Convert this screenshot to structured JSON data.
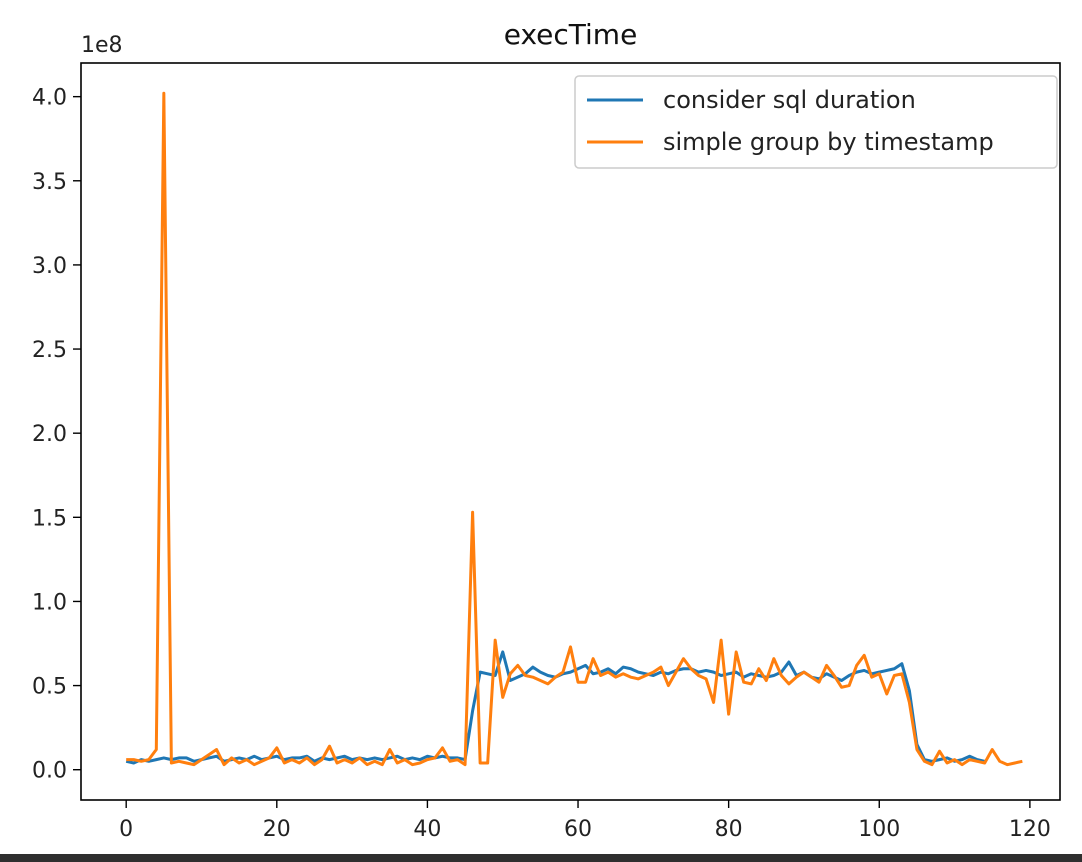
{
  "chart_data": {
    "type": "line",
    "title": "execTime",
    "xlabel": "",
    "ylabel": "",
    "y_multiplier_label": "1e8",
    "xlim": [
      -6,
      124
    ],
    "ylim": [
      -0.18,
      4.2
    ],
    "x_ticks": [
      0,
      20,
      40,
      60,
      80,
      100,
      120
    ],
    "x_tick_labels": [
      "0",
      "20",
      "40",
      "60",
      "80",
      "100",
      "120"
    ],
    "y_ticks": [
      0.0,
      0.5,
      1.0,
      1.5,
      2.0,
      2.5,
      3.0,
      3.5,
      4.0
    ],
    "y_tick_labels": [
      "0.0",
      "0.5",
      "1.0",
      "1.5",
      "2.0",
      "2.5",
      "3.0",
      "3.5",
      "4.0"
    ],
    "legend_position": "top-right",
    "grid": false,
    "series": [
      {
        "name": "consider sql duration",
        "color": "#1f77b4",
        "x": [
          0,
          1,
          2,
          3,
          4,
          5,
          6,
          7,
          8,
          9,
          10,
          11,
          12,
          13,
          14,
          15,
          16,
          17,
          18,
          19,
          20,
          21,
          22,
          23,
          24,
          25,
          26,
          27,
          28,
          29,
          30,
          31,
          32,
          33,
          34,
          35,
          36,
          37,
          38,
          39,
          40,
          41,
          42,
          43,
          44,
          45,
          46,
          47,
          48,
          49,
          50,
          51,
          52,
          53,
          54,
          55,
          56,
          57,
          58,
          59,
          60,
          61,
          62,
          63,
          64,
          65,
          66,
          67,
          68,
          69,
          70,
          71,
          72,
          73,
          74,
          75,
          76,
          77,
          78,
          79,
          80,
          81,
          82,
          83,
          84,
          85,
          86,
          87,
          88,
          89,
          90,
          91,
          92,
          93,
          94,
          95,
          96,
          97,
          98,
          99,
          100,
          101,
          102,
          103,
          104,
          105,
          106,
          107,
          108,
          109,
          110,
          111,
          112,
          113,
          114
        ],
        "y": [
          0.05,
          0.04,
          0.06,
          0.05,
          0.06,
          0.07,
          0.06,
          0.07,
          0.07,
          0.05,
          0.06,
          0.07,
          0.08,
          0.05,
          0.06,
          0.07,
          0.06,
          0.08,
          0.06,
          0.07,
          0.08,
          0.06,
          0.07,
          0.07,
          0.08,
          0.05,
          0.07,
          0.06,
          0.07,
          0.08,
          0.06,
          0.07,
          0.06,
          0.07,
          0.06,
          0.07,
          0.08,
          0.06,
          0.07,
          0.06,
          0.08,
          0.07,
          0.08,
          0.07,
          0.07,
          0.06,
          0.35,
          0.58,
          0.57,
          0.56,
          0.7,
          0.53,
          0.55,
          0.57,
          0.61,
          0.58,
          0.56,
          0.55,
          0.57,
          0.58,
          0.6,
          0.62,
          0.57,
          0.58,
          0.6,
          0.57,
          0.61,
          0.6,
          0.58,
          0.57,
          0.56,
          0.58,
          0.57,
          0.59,
          0.6,
          0.6,
          0.58,
          0.59,
          0.58,
          0.56,
          0.57,
          0.58,
          0.55,
          0.57,
          0.56,
          0.55,
          0.56,
          0.58,
          0.64,
          0.56,
          0.58,
          0.55,
          0.54,
          0.57,
          0.55,
          0.53,
          0.56,
          0.58,
          0.59,
          0.57,
          0.58,
          0.59,
          0.6,
          0.63,
          0.47,
          0.15,
          0.06,
          0.05,
          0.06,
          0.07,
          0.05,
          0.06,
          0.08,
          0.06,
          0.05
        ],
        "data_label": "consider sql duration"
      },
      {
        "name": "simple group by timestamp",
        "color": "#ff7f0e",
        "x": [
          0,
          1,
          2,
          3,
          4,
          5,
          6,
          7,
          8,
          9,
          10,
          11,
          12,
          13,
          14,
          15,
          16,
          17,
          18,
          19,
          20,
          21,
          22,
          23,
          24,
          25,
          26,
          27,
          28,
          29,
          30,
          31,
          32,
          33,
          34,
          35,
          36,
          37,
          38,
          39,
          40,
          41,
          42,
          43,
          44,
          45,
          46,
          47,
          48,
          49,
          50,
          51,
          52,
          53,
          54,
          55,
          56,
          57,
          58,
          59,
          60,
          61,
          62,
          63,
          64,
          65,
          66,
          67,
          68,
          69,
          70,
          71,
          72,
          73,
          74,
          75,
          76,
          77,
          78,
          79,
          80,
          81,
          82,
          83,
          84,
          85,
          86,
          87,
          88,
          89,
          90,
          91,
          92,
          93,
          94,
          95,
          96,
          97,
          98,
          99,
          100,
          101,
          102,
          103,
          104,
          105,
          106,
          107,
          108,
          109,
          110,
          111,
          112,
          113,
          114,
          115,
          116,
          117,
          118,
          119
        ],
        "y": [
          0.06,
          0.06,
          0.05,
          0.06,
          0.12,
          4.02,
          0.04,
          0.05,
          0.04,
          0.03,
          0.06,
          0.09,
          0.12,
          0.03,
          0.07,
          0.04,
          0.06,
          0.03,
          0.05,
          0.07,
          0.13,
          0.04,
          0.06,
          0.04,
          0.07,
          0.03,
          0.06,
          0.14,
          0.04,
          0.06,
          0.04,
          0.07,
          0.03,
          0.05,
          0.03,
          0.12,
          0.04,
          0.06,
          0.03,
          0.04,
          0.06,
          0.07,
          0.13,
          0.05,
          0.06,
          0.03,
          1.53,
          0.04,
          0.04,
          0.77,
          0.43,
          0.57,
          0.62,
          0.56,
          0.55,
          0.53,
          0.51,
          0.55,
          0.58,
          0.73,
          0.52,
          0.52,
          0.66,
          0.56,
          0.58,
          0.55,
          0.57,
          0.55,
          0.54,
          0.56,
          0.58,
          0.61,
          0.5,
          0.58,
          0.66,
          0.6,
          0.56,
          0.54,
          0.4,
          0.77,
          0.33,
          0.7,
          0.52,
          0.51,
          0.6,
          0.53,
          0.66,
          0.56,
          0.51,
          0.55,
          0.58,
          0.55,
          0.52,
          0.62,
          0.56,
          0.49,
          0.5,
          0.62,
          0.68,
          0.55,
          0.57,
          0.45,
          0.56,
          0.57,
          0.4,
          0.12,
          0.05,
          0.03,
          0.11,
          0.04,
          0.06,
          0.03,
          0.06,
          0.05,
          0.04,
          0.12,
          0.05,
          0.03,
          0.04,
          0.05
        ]
      }
    ]
  }
}
